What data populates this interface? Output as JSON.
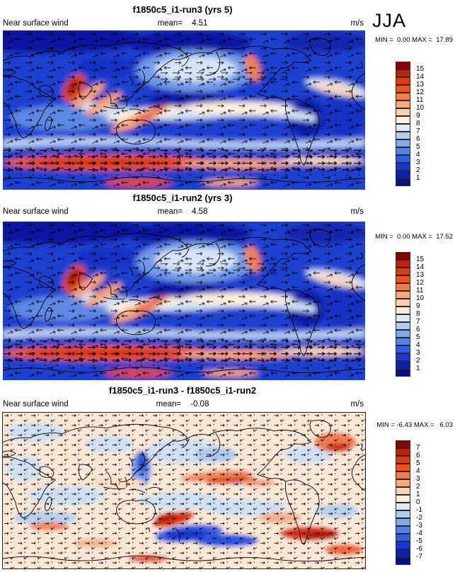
{
  "season": "JJA",
  "panels": [
    {
      "title": "f1850c5_i1-run3 (yrs 5)",
      "variable": "Near surface wind",
      "mean_label": "mean=",
      "mean_value": "4.51",
      "units": "m/s",
      "min_max": "MIN =  0.00 MAX =  17.89",
      "colorbar": {
        "ticks": [
          "15",
          "14",
          "13",
          "12",
          "11",
          "10",
          "9",
          "8",
          "7",
          "6",
          "5",
          "4",
          "3",
          "2",
          "1"
        ],
        "colors": [
          "#8b0000",
          "#c1200c",
          "#e03a10",
          "#f25018",
          "#f97c48",
          "#fba87c",
          "#fdd0b0",
          "#fdeedd",
          "#dce9f7",
          "#b0cdec",
          "#80a8ee",
          "#5480ea",
          "#2f5cea",
          "#1737d4",
          "#0c1fae",
          "#071185"
        ]
      }
    },
    {
      "title": "f1850c5_i1-run2 (yrs 3)",
      "variable": "Near surface wind",
      "mean_label": "mean=",
      "mean_value": "4.58",
      "units": "m/s",
      "min_max": "MIN =  0.00 MAX =  17.52",
      "colorbar": {
        "ticks": [
          "15",
          "14",
          "13",
          "12",
          "11",
          "10",
          "9",
          "8",
          "7",
          "6",
          "5",
          "4",
          "3",
          "2",
          "1"
        ],
        "colors": [
          "#8b0000",
          "#c1200c",
          "#e03a10",
          "#f25018",
          "#f97c48",
          "#fba87c",
          "#fdd0b0",
          "#fdeedd",
          "#dce9f7",
          "#b0cdec",
          "#80a8ee",
          "#5480ea",
          "#2f5cea",
          "#1737d4",
          "#0c1fae",
          "#071185"
        ]
      }
    },
    {
      "title": "f1850c5_i1-run3 - f1850c5_i1-run2",
      "variable": "Near surface wind",
      "mean_label": "mean=",
      "mean_value": "-0.08",
      "units": "m/s",
      "min_max": "MIN = -6.43 MAX =   6.03",
      "colorbar": {
        "ticks": [
          "7",
          "6",
          "5",
          "4",
          "3",
          "2",
          "1",
          "0",
          "-1",
          "-2",
          "-3",
          "-4",
          "-5",
          "-6",
          "-7"
        ],
        "colors": [
          "#8b0000",
          "#c1200c",
          "#e03a10",
          "#f25018",
          "#f97c48",
          "#fba87c",
          "#fdd0b0",
          "#fdeedd",
          "#dce9f7",
          "#b0cdec",
          "#80a8ee",
          "#5480ea",
          "#2f5cea",
          "#1737d4",
          "#0c1fae",
          "#071185"
        ]
      }
    }
  ],
  "chart_data": [
    {
      "type": "heatmap",
      "subtype": "filled-contour world map with wind-vector overlay",
      "title": "f1850c5_i1-run3 (yrs 5)",
      "variable": "Near surface wind",
      "season": "JJA",
      "units": "m/s",
      "mean": 4.51,
      "min": 0.0,
      "max": 17.89,
      "colorbar_levels": [
        1,
        2,
        3,
        4,
        5,
        6,
        7,
        8,
        9,
        10,
        11,
        12,
        13,
        14,
        15
      ],
      "palette": "blue (low) to red (high), 16 bins",
      "layout": "global cylindrical equidistant, Pacific-centered, colorbar at right"
    },
    {
      "type": "heatmap",
      "subtype": "filled-contour world map with wind-vector overlay",
      "title": "f1850c5_i1-run2 (yrs 3)",
      "variable": "Near surface wind",
      "season": "JJA",
      "units": "m/s",
      "mean": 4.58,
      "min": 0.0,
      "max": 17.52,
      "colorbar_levels": [
        1,
        2,
        3,
        4,
        5,
        6,
        7,
        8,
        9,
        10,
        11,
        12,
        13,
        14,
        15
      ],
      "palette": "blue (low) to red (high), 16 bins",
      "layout": "global cylindrical equidistant, Pacific-centered, colorbar at right"
    },
    {
      "type": "heatmap",
      "subtype": "difference map (run3 - run2) with wind-vector overlay",
      "title": "f1850c5_i1-run3 - f1850c5_i1-run2",
      "variable": "Near surface wind",
      "season": "JJA",
      "units": "m/s",
      "mean": -0.08,
      "min": -6.43,
      "max": 6.03,
      "colorbar_levels": [
        -7,
        -6,
        -5,
        -4,
        -3,
        -2,
        -1,
        0,
        1,
        2,
        3,
        4,
        5,
        6,
        7
      ],
      "palette": "blue (negative) to red (positive), 16 bins",
      "layout": "global cylindrical equidistant, Pacific-centered, colorbar at right"
    }
  ]
}
